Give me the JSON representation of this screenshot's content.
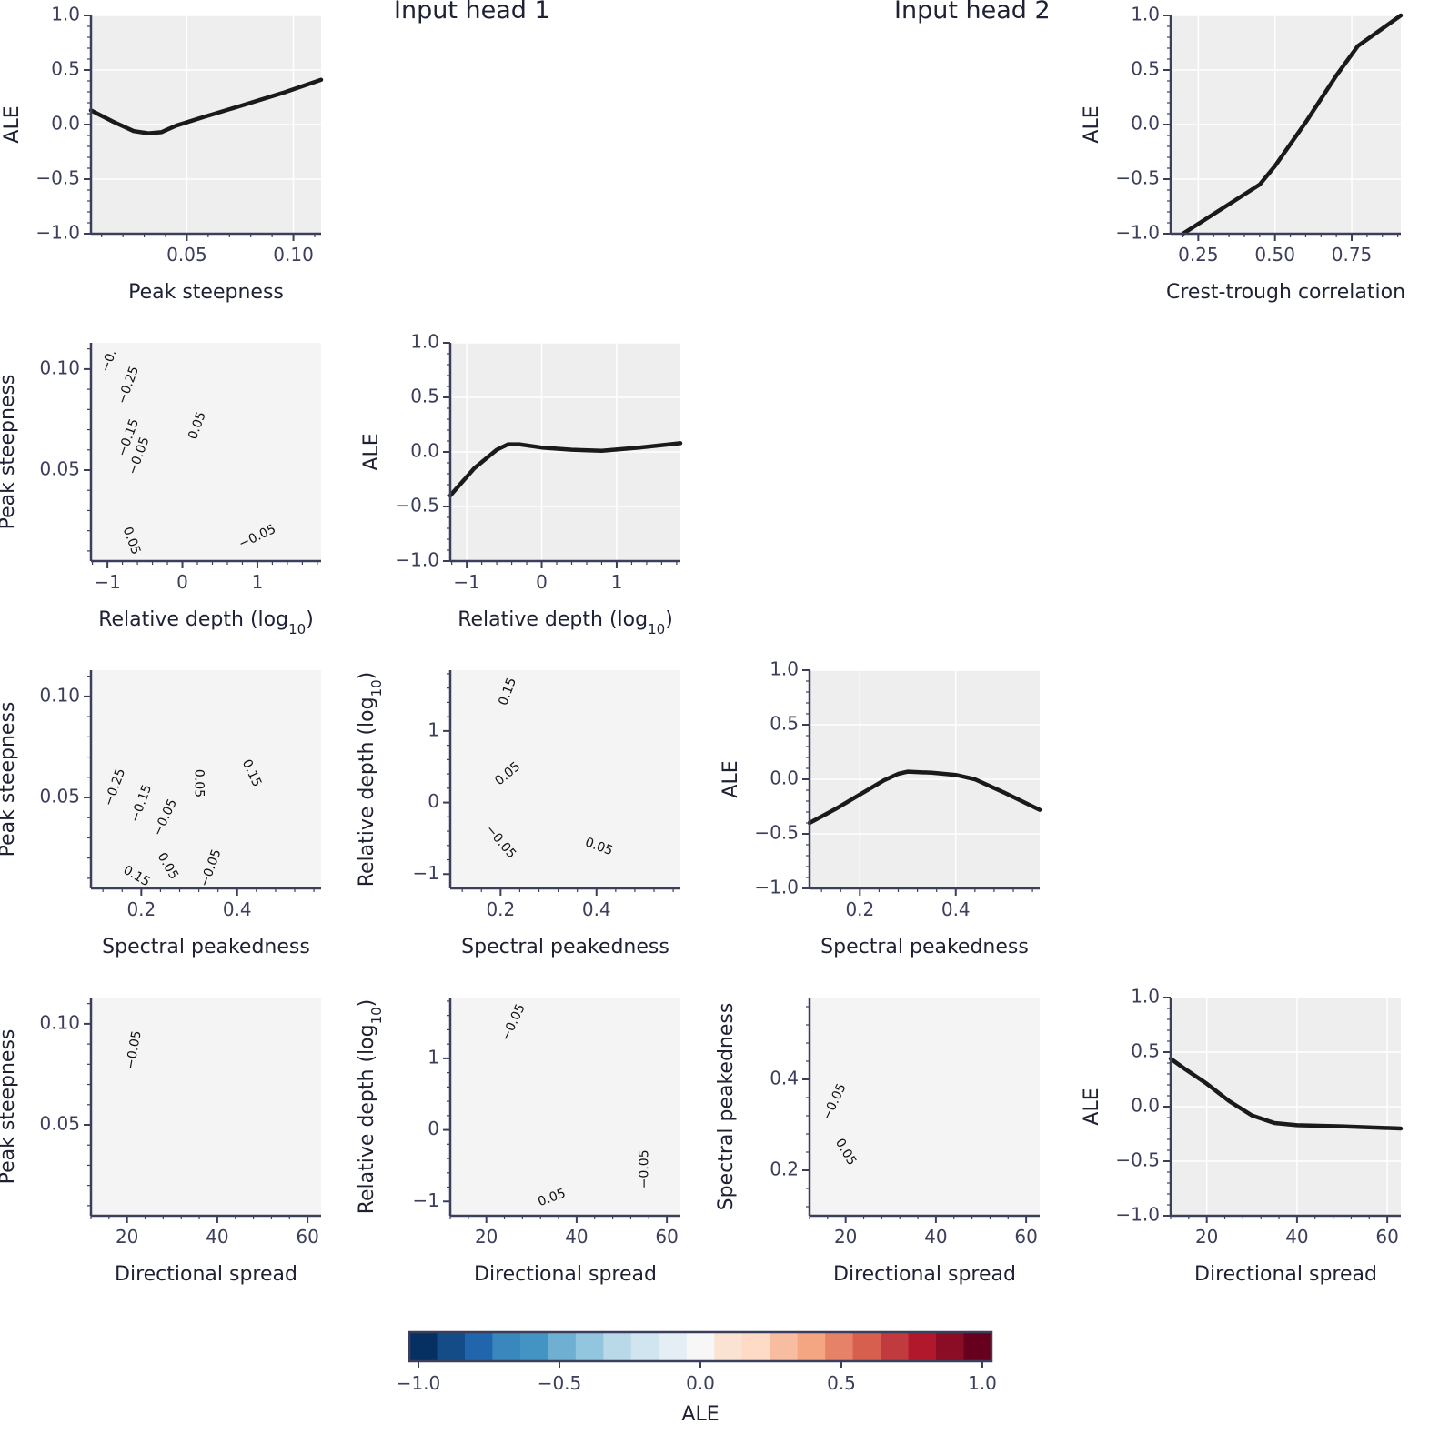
{
  "titles": {
    "head1": "Input head 1",
    "head2": "Input head 2"
  },
  "colors": {
    "panel_bg": "#eeeeee",
    "contour_bg": "#f4f4f4",
    "grid": "#ffffff",
    "axis": "#3b3f5c",
    "line": "#1a1a1a",
    "blue": "#d3e2ee",
    "blue_dark": "#a9c9df",
    "red": "#fadbcc",
    "red_dark": "#f4c2ab"
  },
  "colorbar": {
    "label": "ALE",
    "ticks": [
      -1.0,
      -0.5,
      0.0,
      0.5,
      1.0
    ],
    "tick_labels": [
      "−1.0",
      "−0.5",
      "0.0",
      "0.5",
      "1.0"
    ],
    "colors": [
      "#053061",
      "#134c87",
      "#2166ac",
      "#3a87bd",
      "#4393c3",
      "#6fafd2",
      "#92c5de",
      "#b9d9e9",
      "#d1e5f0",
      "#e4eef4",
      "#f7f7f7",
      "#fbe3d4",
      "#fddbc7",
      "#f8bca1",
      "#f4a582",
      "#e58268",
      "#d6604d",
      "#c13b3e",
      "#b2182b",
      "#8a0c25",
      "#67001f"
    ]
  },
  "chart_data": [
    {
      "id": "ale-peak-steepness",
      "type": "line",
      "xlabel": "Peak steepness",
      "ylabel": "ALE",
      "xlim": [
        0.005,
        0.113
      ],
      "ylim": [
        -1.0,
        1.0
      ],
      "xticks": [
        0.05,
        0.1
      ],
      "xtick_labels": [
        "0.05",
        "0.10"
      ],
      "yticks": [
        -1.0,
        -0.5,
        0.0,
        0.5,
        1.0
      ],
      "ytick_labels": [
        "−1.0",
        "−0.5",
        "0.0",
        "0.5",
        "1.0"
      ],
      "x": [
        0.005,
        0.015,
        0.025,
        0.032,
        0.038,
        0.045,
        0.058,
        0.075,
        0.095,
        0.113
      ],
      "y": [
        0.13,
        0.03,
        -0.06,
        -0.08,
        -0.07,
        -0.01,
        0.07,
        0.17,
        0.29,
        0.41
      ]
    },
    {
      "id": "ale-crest-trough",
      "type": "line",
      "xlabel": "Crest-trough correlation",
      "ylabel": "ALE",
      "xlim": [
        0.16,
        0.91
      ],
      "ylim": [
        -1.0,
        1.0
      ],
      "xticks": [
        0.25,
        0.5,
        0.75
      ],
      "xtick_labels": [
        "0.25",
        "0.50",
        "0.75"
      ],
      "yticks": [
        -1.0,
        -0.5,
        0.0,
        0.5,
        1.0
      ],
      "ytick_labels": [
        "−1.0",
        "−0.5",
        "0.0",
        "0.5",
        "1.0"
      ],
      "x": [
        0.2,
        0.3,
        0.45,
        0.5,
        0.6,
        0.7,
        0.77,
        0.91
      ],
      "y": [
        -1.0,
        -0.82,
        -0.55,
        -0.38,
        0.02,
        0.45,
        0.72,
        1.0
      ]
    },
    {
      "id": "contour-peak-vs-depth",
      "type": "contour",
      "xlabel": "Relative depth",
      "xlabel_sub": "10",
      "ylabel": "Peak steepness",
      "xlim": [
        -1.22,
        1.85
      ],
      "ylim": [
        0.005,
        0.113
      ],
      "xticks": [
        -1,
        0,
        1
      ],
      "xtick_labels": [
        "−1",
        "0",
        "1"
      ],
      "yticks": [
        0.05,
        0.1
      ],
      "ytick_labels": [
        "0.05",
        "0.10"
      ],
      "contour_labels": [
        {
          "text": "−0.",
          "x": -0.98,
          "y": 0.104,
          "rot": -70
        },
        {
          "text": "−0.25",
          "x": -0.72,
          "y": 0.092,
          "rot": -70
        },
        {
          "text": "−0.15",
          "x": -0.72,
          "y": 0.066,
          "rot": -70
        },
        {
          "text": "−0.05",
          "x": -0.58,
          "y": 0.057,
          "rot": -70
        },
        {
          "text": "0.05",
          "x": 0.2,
          "y": 0.072,
          "rot": -70
        },
        {
          "text": "0.05",
          "x": -0.68,
          "y": 0.015,
          "rot": 70
        },
        {
          "text": "−0.05",
          "x": 1.0,
          "y": 0.017,
          "rot": -25
        }
      ]
    },
    {
      "id": "ale-relative-depth",
      "type": "line",
      "xlabel": "Relative depth",
      "xlabel_sub": "10",
      "ylabel": "ALE",
      "xlim": [
        -1.22,
        1.85
      ],
      "ylim": [
        -1.0,
        1.0
      ],
      "xticks": [
        -1,
        0,
        1
      ],
      "xtick_labels": [
        "−1",
        "0",
        "1"
      ],
      "yticks": [
        -1.0,
        -0.5,
        0.0,
        0.5,
        1.0
      ],
      "ytick_labels": [
        "−1.0",
        "−0.5",
        "0.0",
        "0.5",
        "1.0"
      ],
      "x": [
        -1.22,
        -0.9,
        -0.6,
        -0.45,
        -0.3,
        0.0,
        0.4,
        0.8,
        1.3,
        1.85
      ],
      "y": [
        -0.4,
        -0.15,
        0.02,
        0.07,
        0.07,
        0.04,
        0.02,
        0.01,
        0.04,
        0.08
      ]
    },
    {
      "id": "contour-peak-vs-spectral",
      "type": "contour",
      "xlabel": "Spectral peakedness",
      "ylabel": "Peak steepness",
      "xlim": [
        0.095,
        0.575
      ],
      "ylim": [
        0.005,
        0.113
      ],
      "xticks": [
        0.2,
        0.4
      ],
      "xtick_labels": [
        "0.2",
        "0.4"
      ],
      "yticks": [
        0.05,
        0.1
      ],
      "ytick_labels": [
        "0.05",
        "0.10"
      ],
      "contour_labels": [
        {
          "text": "−0.25",
          "x": 0.145,
          "y": 0.055,
          "rot": -70
        },
        {
          "text": "−0.15",
          "x": 0.2,
          "y": 0.047,
          "rot": -70
        },
        {
          "text": "−0.05",
          "x": 0.25,
          "y": 0.04,
          "rot": -65
        },
        {
          "text": "0.05",
          "x": 0.32,
          "y": 0.057,
          "rot": 90
        },
        {
          "text": "0.15",
          "x": 0.43,
          "y": 0.062,
          "rot": 65
        },
        {
          "text": "0.15",
          "x": 0.19,
          "y": 0.011,
          "rot": 30
        },
        {
          "text": "0.05",
          "x": 0.255,
          "y": 0.016,
          "rot": 60
        },
        {
          "text": "−0.05",
          "x": 0.345,
          "y": 0.015,
          "rot": -70
        }
      ]
    },
    {
      "id": "contour-depth-vs-spectral",
      "type": "contour",
      "xlabel": "Spectral peakedness",
      "ylabel": "Relative depth",
      "ylabel_sub": "10",
      "xlim": [
        0.095,
        0.575
      ],
      "ylim": [
        -1.2,
        1.85
      ],
      "xticks": [
        0.2,
        0.4
      ],
      "xtick_labels": [
        "0.2",
        "0.4"
      ],
      "yticks": [
        -1,
        0,
        1
      ],
      "ytick_labels": [
        "−1",
        "0",
        "1"
      ],
      "contour_labels": [
        {
          "text": "0.15",
          "x": 0.215,
          "y": 1.55,
          "rot": -70
        },
        {
          "text": "0.05",
          "x": 0.215,
          "y": 0.4,
          "rot": -40
        },
        {
          "text": "−0.05",
          "x": 0.2,
          "y": -0.55,
          "rot": 50
        },
        {
          "text": "0.05",
          "x": 0.405,
          "y": -0.62,
          "rot": 20
        }
      ]
    },
    {
      "id": "ale-spectral-peakedness",
      "type": "line",
      "xlabel": "Spectral peakedness",
      "ylabel": "ALE",
      "xlim": [
        0.095,
        0.575
      ],
      "ylim": [
        -1.0,
        1.0
      ],
      "xticks": [
        0.2,
        0.4
      ],
      "xtick_labels": [
        "0.2",
        "0.4"
      ],
      "yticks": [
        -1.0,
        -0.5,
        0.0,
        0.5,
        1.0
      ],
      "ytick_labels": [
        "−1.0",
        "−0.5",
        "0.0",
        "0.5",
        "1.0"
      ],
      "x": [
        0.095,
        0.15,
        0.2,
        0.25,
        0.28,
        0.3,
        0.35,
        0.4,
        0.44,
        0.5,
        0.575
      ],
      "y": [
        -0.4,
        -0.27,
        -0.14,
        -0.01,
        0.05,
        0.07,
        0.06,
        0.04,
        0.0,
        -0.12,
        -0.28
      ]
    },
    {
      "id": "contour-peak-vs-spread",
      "type": "contour",
      "xlabel": "Directional spread",
      "ylabel": "Peak steepness",
      "xlim": [
        12,
        63
      ],
      "ylim": [
        0.005,
        0.113
      ],
      "xticks": [
        20,
        40,
        60
      ],
      "xtick_labels": [
        "20",
        "40",
        "60"
      ],
      "yticks": [
        0.05,
        0.1
      ],
      "ytick_labels": [
        "0.05",
        "0.10"
      ],
      "contour_labels": [
        {
          "text": "−0.05",
          "x": 21.5,
          "y": 0.087,
          "rot": -80
        }
      ]
    },
    {
      "id": "contour-depth-vs-spread",
      "type": "contour",
      "xlabel": "Directional spread",
      "ylabel": "Relative depth",
      "ylabel_sub": "10",
      "xlim": [
        12,
        63
      ],
      "ylim": [
        -1.2,
        1.85
      ],
      "xticks": [
        20,
        40,
        60
      ],
      "xtick_labels": [
        "20",
        "40",
        "60"
      ],
      "yticks": [
        -1,
        0,
        1
      ],
      "ytick_labels": [
        "−1",
        "0",
        "1"
      ],
      "contour_labels": [
        {
          "text": "−0.05",
          "x": 26,
          "y": 1.5,
          "rot": -65
        },
        {
          "text": "−0.05",
          "x": 55,
          "y": -0.55,
          "rot": -90
        },
        {
          "text": "0.05",
          "x": 34.5,
          "y": -0.95,
          "rot": -20
        }
      ]
    },
    {
      "id": "contour-spectral-vs-spread",
      "type": "contour",
      "xlabel": "Directional spread",
      "ylabel": "Spectral peakedness",
      "xlim": [
        12,
        63
      ],
      "ylim": [
        0.1,
        0.58
      ],
      "xticks": [
        20,
        40,
        60
      ],
      "xtick_labels": [
        "20",
        "40",
        "60"
      ],
      "yticks": [
        0.2,
        0.4
      ],
      "ytick_labels": [
        "0.2",
        "0.4"
      ],
      "contour_labels": [
        {
          "text": "−0.05",
          "x": 17.5,
          "y": 0.35,
          "rot": -65
        },
        {
          "text": "0.05",
          "x": 20,
          "y": 0.24,
          "rot": 60
        }
      ]
    },
    {
      "id": "ale-directional-spread",
      "type": "line",
      "xlabel": "Directional spread",
      "ylabel": "ALE",
      "xlim": [
        12,
        63
      ],
      "ylim": [
        -1.0,
        1.0
      ],
      "xticks": [
        20,
        40,
        60
      ],
      "xtick_labels": [
        "20",
        "40",
        "60"
      ],
      "yticks": [
        -1.0,
        -0.5,
        0.0,
        0.5,
        1.0
      ],
      "ytick_labels": [
        "−1.0",
        "−0.5",
        "0.0",
        "0.5",
        "1.0"
      ],
      "x": [
        12,
        15,
        20,
        25,
        30,
        35,
        40,
        50,
        63
      ],
      "y": [
        0.44,
        0.35,
        0.21,
        0.05,
        -0.08,
        -0.15,
        -0.17,
        -0.18,
        -0.2
      ]
    }
  ]
}
